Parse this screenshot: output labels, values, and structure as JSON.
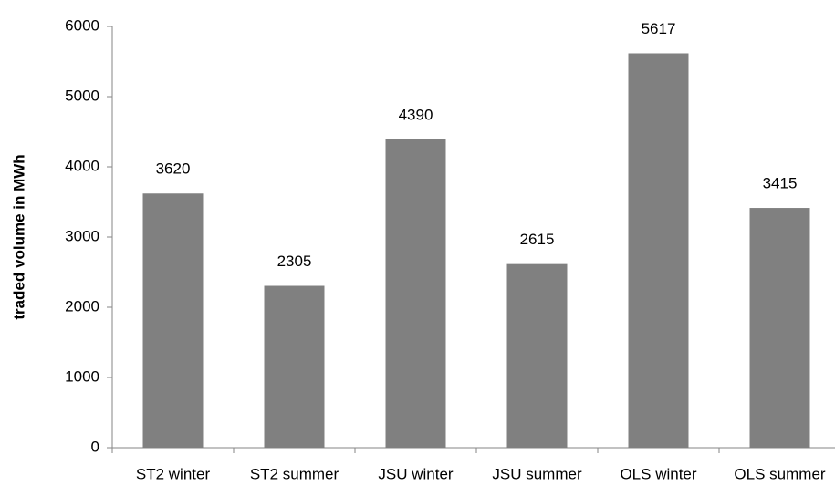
{
  "chart_data": {
    "type": "bar",
    "y_label": "traded volume in MWh",
    "categories": [
      "ST2 winter",
      "ST2 summer",
      "JSU winter",
      "JSU summer",
      "OLS winter",
      "OLS summer"
    ],
    "values": [
      3620,
      2305,
      4390,
      2615,
      5617,
      3415
    ],
    "color": "#808080",
    "ylim": [
      0,
      6000
    ],
    "yticks": [
      0,
      1000,
      2000,
      3000,
      4000,
      5000,
      6000
    ],
    "grid": false
  }
}
